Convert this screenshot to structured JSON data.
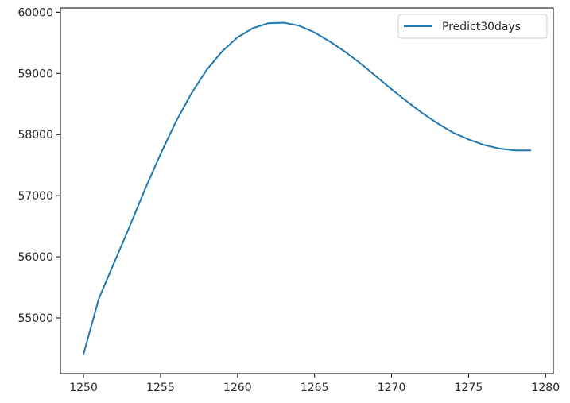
{
  "chart_data": {
    "type": "line",
    "title": "",
    "xlabel": "",
    "ylabel": "",
    "xlim": [
      1248.5,
      1280.5
    ],
    "ylim": [
      54090,
      60070
    ],
    "xticks": [
      1250,
      1255,
      1260,
      1265,
      1270,
      1275,
      1280
    ],
    "yticks": [
      55000,
      56000,
      57000,
      58000,
      59000,
      60000
    ],
    "grid": false,
    "legend_position": "top-right",
    "series": [
      {
        "name": "Predict30days",
        "color": "#1f77b4",
        "x": [
          1250,
          1251,
          1252,
          1253,
          1254,
          1255,
          1256,
          1257,
          1258,
          1259,
          1260,
          1261,
          1262,
          1263,
          1264,
          1265,
          1266,
          1267,
          1268,
          1269,
          1270,
          1271,
          1272,
          1273,
          1274,
          1275,
          1276,
          1277,
          1278,
          1279
        ],
        "y": [
          54410,
          55320,
          55910,
          56500,
          57110,
          57680,
          58210,
          58670,
          59060,
          59360,
          59590,
          59740,
          59820,
          59830,
          59780,
          59670,
          59520,
          59350,
          59160,
          58950,
          58740,
          58540,
          58350,
          58180,
          58030,
          57920,
          57830,
          57770,
          57740,
          57740
        ]
      }
    ]
  }
}
